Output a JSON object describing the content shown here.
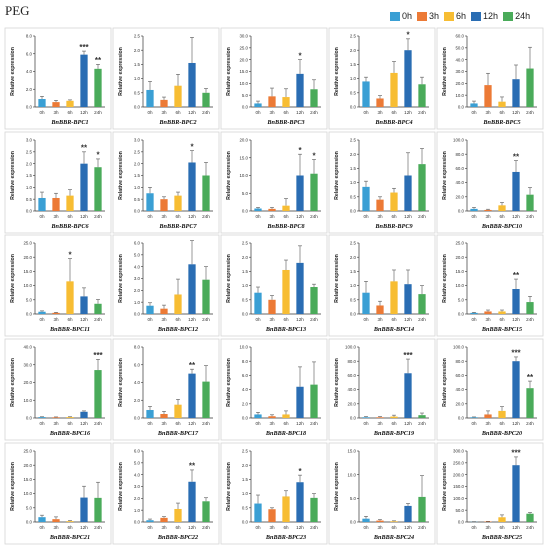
{
  "figure": {
    "title": "PEG",
    "legend": [
      {
        "label": "0h",
        "color": "#3a9fd4"
      },
      {
        "label": "3h",
        "color": "#ec7a36"
      },
      {
        "label": "6h",
        "color": "#f7bd33"
      },
      {
        "label": "12h",
        "color": "#2a6db3"
      },
      {
        "label": "24h",
        "color": "#4aab5a"
      }
    ],
    "ylabel": "Relative expression",
    "categories": [
      "0h",
      "3h",
      "6h",
      "12h",
      "24h"
    ]
  },
  "chart_data": [
    {
      "type": "bar",
      "title": "BnBBR-BPC1",
      "ylim": [
        0,
        8
      ],
      "yticks": [
        "0.0",
        "2.0",
        "4.0",
        "6.0",
        "8.0"
      ],
      "values": [
        0.9,
        0.55,
        0.7,
        5.9,
        4.3
      ],
      "errors": [
        0.3,
        0.2,
        0.1,
        0.4,
        0.5
      ],
      "sig": [
        "",
        "",
        "",
        "***",
        "**"
      ]
    },
    {
      "type": "bar",
      "title": "BnBBR-BPC2",
      "ylim": [
        0,
        2.5
      ],
      "yticks": [
        "0.0",
        "0.5",
        "1.0",
        "1.5",
        "2.0",
        "2.5"
      ],
      "values": [
        0.6,
        0.25,
        0.75,
        1.55,
        0.5
      ],
      "errors": [
        0.3,
        0.1,
        0.4,
        0.9,
        0.15
      ],
      "sig": [
        "",
        "",
        "",
        "",
        ""
      ]
    },
    {
      "type": "bar",
      "title": "BnBBR-BPC3",
      "ylim": [
        0,
        30
      ],
      "yticks": [
        "0.0",
        "5.0",
        "10.0",
        "15.0",
        "20.0",
        "25.0",
        "30.0"
      ],
      "values": [
        1.5,
        4.5,
        4.2,
        14.0,
        7.5
      ],
      "errors": [
        1.0,
        3.5,
        3.5,
        6.0,
        4.0
      ],
      "sig": [
        "",
        "",
        "",
        "*",
        ""
      ]
    },
    {
      "type": "bar",
      "title": "BnBBR-BPC4",
      "ylim": [
        0,
        2.5
      ],
      "yticks": [
        "0.0",
        "0.5",
        "1.0",
        "1.5",
        "2.0",
        "2.5"
      ],
      "values": [
        0.9,
        0.3,
        1.2,
        2.0,
        0.8
      ],
      "errors": [
        0.15,
        0.1,
        0.4,
        0.4,
        0.25
      ],
      "sig": [
        "",
        "",
        "",
        "*",
        ""
      ]
    },
    {
      "type": "bar",
      "title": "BnBBR-BPC5",
      "ylim": [
        0,
        60
      ],
      "yticks": [
        "0.0",
        "10.0",
        "20.0",
        "30.0",
        "40.0",
        "50.0",
        "60.0"
      ],
      "values": [
        3.0,
        18.5,
        4.5,
        23.5,
        32.5
      ],
      "errors": [
        2.0,
        10.0,
        4.0,
        12.0,
        18.0
      ],
      "sig": [
        "",
        "",
        "",
        "",
        ""
      ]
    },
    {
      "type": "bar",
      "title": "BnBBR-BPC6",
      "ylim": [
        0,
        3
      ],
      "yticks": [
        "0.0",
        "0.5",
        "1.0",
        "1.5",
        "2.0",
        "2.5",
        "3.0"
      ],
      "values": [
        0.55,
        0.55,
        0.65,
        2.0,
        1.85
      ],
      "errors": [
        0.25,
        0.2,
        0.25,
        0.5,
        0.35
      ],
      "sig": [
        "",
        "",
        "",
        "**",
        "*"
      ]
    },
    {
      "type": "bar",
      "title": "BnBBR-BPC7",
      "ylim": [
        0,
        3
      ],
      "yticks": [
        "0.0",
        "0.5",
        "1.0",
        "1.5",
        "2.0",
        "2.5",
        "3.0"
      ],
      "values": [
        0.75,
        0.5,
        0.65,
        2.05,
        1.5
      ],
      "errors": [
        0.25,
        0.1,
        0.15,
        0.5,
        0.55
      ],
      "sig": [
        "",
        "",
        "",
        "*",
        ""
      ]
    },
    {
      "type": "bar",
      "title": "BnBBR-BPC8",
      "ylim": [
        0,
        20
      ],
      "yticks": [
        "0.0",
        "5.0",
        "10.0",
        "15.0",
        "20.0"
      ],
      "values": [
        0.7,
        0.6,
        1.5,
        10.0,
        10.5
      ],
      "errors": [
        0.3,
        0.4,
        2.0,
        6.0,
        4.0
      ],
      "sig": [
        "",
        "",
        "",
        "*",
        "*"
      ]
    },
    {
      "type": "bar",
      "title": "BnBBR-BPC9",
      "ylim": [
        0,
        2.5
      ],
      "yticks": [
        "0.0",
        "0.5",
        "1.0",
        "1.5",
        "2.0",
        "2.5"
      ],
      "values": [
        0.85,
        0.4,
        0.65,
        1.25,
        1.65
      ],
      "errors": [
        0.2,
        0.1,
        0.15,
        0.8,
        0.55
      ],
      "sig": [
        "",
        "",
        "",
        "",
        ""
      ]
    },
    {
      "type": "bar",
      "title": "BnBBR-BPC10",
      "ylim": [
        0,
        100
      ],
      "yticks": [
        "0.0",
        "20.0",
        "40.0",
        "60.0",
        "80.0",
        "100.0"
      ],
      "values": [
        3.0,
        1.5,
        8.0,
        55.0,
        23.0
      ],
      "errors": [
        2.0,
        1.0,
        4.0,
        16.0,
        10.0
      ],
      "sig": [
        "",
        "",
        "",
        "**",
        ""
      ]
    },
    {
      "type": "bar",
      "title": "BnBBR-BPC11",
      "ylim": [
        0,
        25
      ],
      "yticks": [
        "0.0",
        "5.0",
        "10.0",
        "15.0",
        "20.0",
        "25.0"
      ],
      "values": [
        0.8,
        0.4,
        11.5,
        6.2,
        3.6
      ],
      "errors": [
        0.3,
        0.2,
        8.0,
        3.0,
        1.5
      ],
      "sig": [
        "",
        "",
        "*",
        "",
        ""
      ]
    },
    {
      "type": "bar",
      "title": "BnBBR-BPC12",
      "ylim": [
        0,
        6
      ],
      "yticks": [
        "0.0",
        "1.0",
        "2.0",
        "3.0",
        "4.0",
        "5.0",
        "6.0"
      ],
      "values": [
        0.7,
        0.45,
        1.65,
        4.2,
        2.9
      ],
      "errors": [
        0.25,
        0.3,
        1.3,
        2.0,
        1.1
      ],
      "sig": [
        "",
        "",
        "",
        "",
        ""
      ]
    },
    {
      "type": "bar",
      "title": "BnBBR-BPC13",
      "ylim": [
        0,
        2.5
      ],
      "yticks": [
        "0.0",
        "0.5",
        "1.0",
        "1.5",
        "2.0",
        "2.5"
      ],
      "values": [
        0.75,
        0.5,
        1.55,
        1.8,
        0.95
      ],
      "errors": [
        0.2,
        0.15,
        0.35,
        0.6,
        0.1
      ],
      "sig": [
        "",
        "",
        "",
        "",
        ""
      ]
    },
    {
      "type": "bar",
      "title": "BnBBR-BPC14",
      "ylim": [
        0,
        2.5
      ],
      "yticks": [
        "0.0",
        "0.5",
        "1.0",
        "1.5",
        "2.0",
        "2.5"
      ],
      "values": [
        0.75,
        0.3,
        1.15,
        1.05,
        0.7
      ],
      "errors": [
        0.4,
        0.15,
        0.4,
        0.5,
        0.3
      ],
      "sig": [
        "",
        "",
        "",
        "",
        ""
      ]
    },
    {
      "type": "bar",
      "title": "BnBBR-BPC15",
      "ylim": [
        0,
        25
      ],
      "yticks": [
        "0.0",
        "5.0",
        "10.0",
        "15.0",
        "20.0",
        "25.0"
      ],
      "values": [
        0.4,
        0.9,
        0.9,
        8.8,
        4.2
      ],
      "errors": [
        0.2,
        0.5,
        0.5,
        3.5,
        2.0
      ],
      "sig": [
        "",
        "",
        "",
        "**",
        ""
      ]
    },
    {
      "type": "bar",
      "title": "BnBBR-BPC16",
      "ylim": [
        0,
        40
      ],
      "yticks": [
        "0.0",
        "10.0",
        "20.0",
        "30.0",
        "40.0"
      ],
      "values": [
        0.5,
        0.4,
        0.5,
        3.5,
        27.0
      ],
      "errors": [
        0.2,
        0.2,
        0.2,
        0.5,
        6.0
      ],
      "sig": [
        "",
        "",
        "",
        "",
        "***"
      ]
    },
    {
      "type": "bar",
      "title": "BnBBR-BPC17",
      "ylim": [
        0,
        8
      ],
      "yticks": [
        "0.0",
        "2.0",
        "4.0",
        "6.0",
        "8.0"
      ],
      "values": [
        0.9,
        0.45,
        1.5,
        5.0,
        4.1
      ],
      "errors": [
        0.4,
        0.3,
        0.6,
        0.5,
        1.8
      ],
      "sig": [
        "",
        "",
        "",
        "**",
        ""
      ]
    },
    {
      "type": "bar",
      "title": "BnBBR-BPC18",
      "ylim": [
        0,
        10
      ],
      "yticks": [
        "0.0",
        "2.0",
        "4.0",
        "6.0",
        "8.0",
        "10.0"
      ],
      "values": [
        0.5,
        0.25,
        0.5,
        4.4,
        4.7
      ],
      "errors": [
        0.3,
        0.2,
        0.5,
        2.8,
        3.2
      ],
      "sig": [
        "",
        "",
        "",
        "",
        ""
      ]
    },
    {
      "type": "bar",
      "title": "BnBBR-BPC19",
      "ylim": [
        0,
        100
      ],
      "yticks": [
        "0.0",
        "20.0",
        "40.0",
        "60.0",
        "80.0",
        "100.0"
      ],
      "values": [
        1.0,
        1.0,
        2.0,
        63.0,
        4.0
      ],
      "errors": [
        1.0,
        1.0,
        2.0,
        20.0,
        3.0
      ],
      "sig": [
        "",
        "",
        "",
        "***",
        ""
      ]
    },
    {
      "type": "bar",
      "title": "BnBBR-BPC20",
      "ylim": [
        0,
        100
      ],
      "yticks": [
        "0.0",
        "20.0",
        "40.0",
        "60.0",
        "80.0",
        "100.0"
      ],
      "values": [
        1.0,
        5.0,
        10.0,
        80.0,
        42.0
      ],
      "errors": [
        0.5,
        5.0,
        6.0,
        6.0,
        10.0
      ],
      "sig": [
        "",
        "",
        "",
        "***",
        "**"
      ]
    },
    {
      "type": "bar",
      "title": "BnBBR-BPC21",
      "ylim": [
        0,
        25
      ],
      "yticks": [
        "0.0",
        "5.0",
        "10.0",
        "15.0",
        "20.0",
        "25.0"
      ],
      "values": [
        1.7,
        1.0,
        0.3,
        8.6,
        8.5
      ],
      "errors": [
        0.7,
        0.8,
        0.2,
        4.0,
        5.5
      ],
      "sig": [
        "",
        "",
        "",
        "",
        ""
      ]
    },
    {
      "type": "bar",
      "title": "BnBBR-BPC22",
      "ylim": [
        0,
        6
      ],
      "yticks": [
        "0.0",
        "1.0",
        "2.0",
        "3.0",
        "4.0",
        "5.0",
        "6.0"
      ],
      "values": [
        0.15,
        0.35,
        1.1,
        3.4,
        1.75
      ],
      "errors": [
        0.1,
        0.1,
        0.5,
        1.0,
        0.3
      ],
      "sig": [
        "",
        "",
        "",
        "**",
        ""
      ]
    },
    {
      "type": "bar",
      "title": "BnBBR-BPC23",
      "ylim": [
        0,
        2.5
      ],
      "yticks": [
        "0.0",
        "0.5",
        "1.0",
        "1.5",
        "2.0",
        "2.5"
      ],
      "values": [
        0.65,
        0.45,
        0.9,
        1.4,
        0.85
      ],
      "errors": [
        0.3,
        0.05,
        0.2,
        0.25,
        0.15
      ],
      "sig": [
        "",
        "",
        "",
        "*",
        ""
      ]
    },
    {
      "type": "bar",
      "title": "BnBBR-BPC24",
      "ylim": [
        0,
        15
      ],
      "yticks": [
        "0.0",
        "5.0",
        "10.0",
        "15.0"
      ],
      "values": [
        0.7,
        0.3,
        0.15,
        3.4,
        5.3
      ],
      "errors": [
        0.5,
        0.2,
        0.1,
        0.5,
        4.5
      ],
      "sig": [
        "",
        "",
        "",
        "",
        ""
      ]
    },
    {
      "type": "bar",
      "title": "BnBBR-BPC25",
      "ylim": [
        0,
        300
      ],
      "yticks": [
        "0.0",
        "50.0",
        "100.0",
        "150.0",
        "200.0",
        "250.0",
        "300.0"
      ],
      "values": [
        1.0,
        2.0,
        20.0,
        240.0,
        35.0
      ],
      "errors": [
        0.5,
        1.0,
        10.0,
        35.0,
        5.0
      ],
      "sig": [
        "",
        "",
        "",
        "***",
        ""
      ]
    }
  ]
}
